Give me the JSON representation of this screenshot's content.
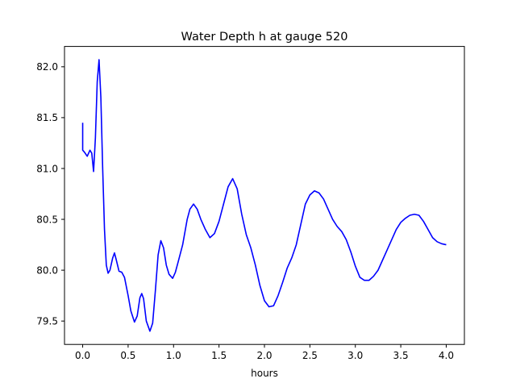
{
  "chart_data": {
    "type": "line",
    "title": "Water Depth h at gauge 520",
    "xlabel": "hours",
    "ylabel": "",
    "xlim": [
      -0.2,
      4.2
    ],
    "ylim": [
      79.27,
      82.2
    ],
    "xticks": [
      0.0,
      0.5,
      1.0,
      1.5,
      2.0,
      2.5,
      3.0,
      3.5,
      4.0
    ],
    "xtick_labels": [
      "0.0",
      "0.5",
      "1.0",
      "1.5",
      "2.0",
      "2.5",
      "3.0",
      "3.5",
      "4.0"
    ],
    "yticks": [
      79.5,
      80.0,
      80.5,
      81.0,
      81.5,
      82.0
    ],
    "ytick_labels": [
      "79.5",
      "80.0",
      "80.5",
      "81.0",
      "81.5",
      "82.0"
    ],
    "grid": false,
    "legend": "none",
    "series": [
      {
        "color": "#0000ff",
        "points": [
          [
            0.0,
            81.45
          ],
          [
            0.0,
            81.18
          ],
          [
            0.02,
            81.16
          ],
          [
            0.05,
            81.12
          ],
          [
            0.08,
            81.18
          ],
          [
            0.1,
            81.15
          ],
          [
            0.12,
            80.97
          ],
          [
            0.14,
            81.3
          ],
          [
            0.16,
            81.85
          ],
          [
            0.18,
            82.07
          ],
          [
            0.2,
            81.7
          ],
          [
            0.22,
            81.0
          ],
          [
            0.24,
            80.4
          ],
          [
            0.26,
            80.05
          ],
          [
            0.28,
            79.97
          ],
          [
            0.3,
            80.0
          ],
          [
            0.33,
            80.12
          ],
          [
            0.35,
            80.17
          ],
          [
            0.37,
            80.1
          ],
          [
            0.4,
            79.99
          ],
          [
            0.43,
            79.98
          ],
          [
            0.46,
            79.93
          ],
          [
            0.5,
            79.75
          ],
          [
            0.53,
            79.6
          ],
          [
            0.57,
            79.49
          ],
          [
            0.6,
            79.55
          ],
          [
            0.63,
            79.73
          ],
          [
            0.65,
            79.77
          ],
          [
            0.67,
            79.72
          ],
          [
            0.7,
            79.5
          ],
          [
            0.74,
            79.4
          ],
          [
            0.77,
            79.48
          ],
          [
            0.8,
            79.8
          ],
          [
            0.83,
            80.15
          ],
          [
            0.86,
            80.29
          ],
          [
            0.89,
            80.22
          ],
          [
            0.92,
            80.05
          ],
          [
            0.95,
            79.96
          ],
          [
            0.99,
            79.92
          ],
          [
            1.02,
            79.98
          ],
          [
            1.05,
            80.08
          ],
          [
            1.1,
            80.25
          ],
          [
            1.15,
            80.5
          ],
          [
            1.18,
            80.6
          ],
          [
            1.22,
            80.65
          ],
          [
            1.26,
            80.6
          ],
          [
            1.3,
            80.5
          ],
          [
            1.35,
            80.4
          ],
          [
            1.4,
            80.32
          ],
          [
            1.45,
            80.36
          ],
          [
            1.5,
            80.48
          ],
          [
            1.55,
            80.65
          ],
          [
            1.6,
            80.82
          ],
          [
            1.65,
            80.9
          ],
          [
            1.7,
            80.8
          ],
          [
            1.75,
            80.55
          ],
          [
            1.8,
            80.35
          ],
          [
            1.85,
            80.22
          ],
          [
            1.9,
            80.05
          ],
          [
            1.95,
            79.85
          ],
          [
            2.0,
            79.7
          ],
          [
            2.05,
            79.64
          ],
          [
            2.1,
            79.65
          ],
          [
            2.15,
            79.75
          ],
          [
            2.2,
            79.88
          ],
          [
            2.25,
            80.02
          ],
          [
            2.3,
            80.12
          ],
          [
            2.35,
            80.25
          ],
          [
            2.4,
            80.45
          ],
          [
            2.45,
            80.65
          ],
          [
            2.5,
            80.74
          ],
          [
            2.55,
            80.78
          ],
          [
            2.6,
            80.76
          ],
          [
            2.65,
            80.7
          ],
          [
            2.7,
            80.6
          ],
          [
            2.75,
            80.5
          ],
          [
            2.8,
            80.43
          ],
          [
            2.85,
            80.38
          ],
          [
            2.9,
            80.3
          ],
          [
            2.95,
            80.18
          ],
          [
            3.0,
            80.04
          ],
          [
            3.05,
            79.93
          ],
          [
            3.1,
            79.9
          ],
          [
            3.15,
            79.9
          ],
          [
            3.2,
            79.94
          ],
          [
            3.25,
            80.0
          ],
          [
            3.3,
            80.1
          ],
          [
            3.35,
            80.2
          ],
          [
            3.4,
            80.3
          ],
          [
            3.45,
            80.4
          ],
          [
            3.5,
            80.47
          ],
          [
            3.55,
            80.51
          ],
          [
            3.6,
            80.54
          ],
          [
            3.65,
            80.55
          ],
          [
            3.7,
            80.54
          ],
          [
            3.75,
            80.48
          ],
          [
            3.8,
            80.4
          ],
          [
            3.85,
            80.32
          ],
          [
            3.9,
            80.28
          ],
          [
            3.95,
            80.26
          ],
          [
            4.0,
            80.25
          ]
        ]
      }
    ]
  }
}
